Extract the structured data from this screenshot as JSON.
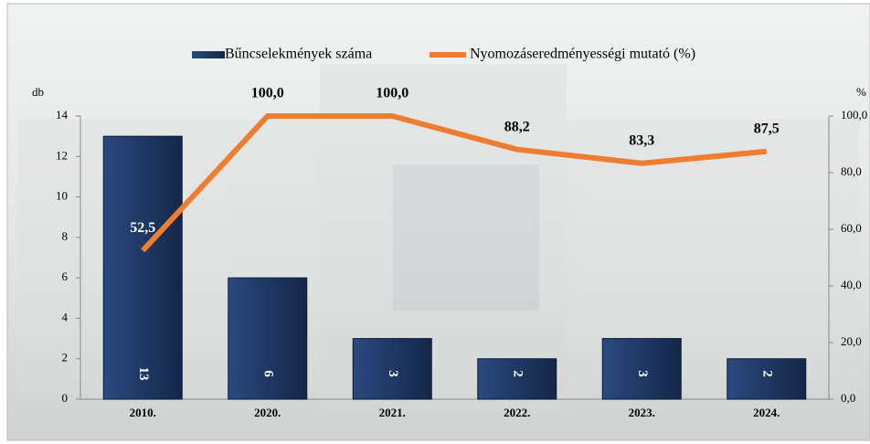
{
  "chart_data": {
    "type": "bar_line",
    "y_label": "db",
    "y2_label": "%",
    "categories": [
      "2010.",
      "2020.",
      "2021.",
      "2022.",
      "2023.",
      "2024."
    ],
    "series": [
      {
        "name": "Bűncselekmények száma",
        "type": "bar",
        "color": "#1f3864",
        "values": [
          13,
          6,
          3,
          2,
          3,
          2
        ]
      },
      {
        "name": "Nyomozáseredményességi mutató (%)",
        "type": "line",
        "axis": "y2",
        "color": "#ed7d31",
        "values": [
          52.5,
          100,
          100,
          88.2,
          83.3,
          87.5
        ],
        "value_labels": [
          "52,5",
          "100,0",
          "100,0",
          "88,2",
          "83,3",
          "87,5"
        ]
      }
    ],
    "ylim": [
      0,
      14
    ],
    "yticks": [
      0,
      2,
      4,
      6,
      8,
      10,
      12,
      14
    ],
    "y2lim": [
      0,
      100
    ],
    "y2ticks": [
      {
        "value": 0,
        "label": "0,0"
      },
      {
        "value": 20,
        "label": "20,0"
      },
      {
        "value": 40,
        "label": "40,0"
      },
      {
        "value": 60,
        "label": "60,0"
      },
      {
        "value": 80,
        "label": "80,0"
      },
      {
        "value": 100,
        "label": "100,0"
      }
    ],
    "legend": "top"
  }
}
